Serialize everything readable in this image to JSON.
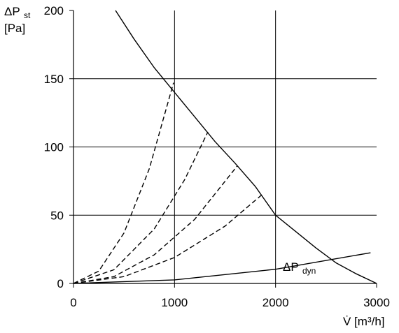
{
  "chart_data": {
    "type": "line",
    "xlabel": "V̇ [m³/h]",
    "ylabel": {
      "text": "ΔP",
      "sub": "st",
      "unit": "[Pa]"
    },
    "annotation": {
      "text": "ΔP",
      "sub": "dyn"
    },
    "xlim": [
      0,
      3000
    ],
    "xticks": [
      0,
      1000,
      2000,
      3000
    ],
    "ylim": [
      0,
      200
    ],
    "yticks": [
      0,
      50,
      100,
      150,
      200
    ],
    "grid": true,
    "series": [
      {
        "color": "#000000",
        "dashed": false,
        "x": [
          416,
          600,
          800,
          1000,
          1200,
          1400,
          1600,
          1800,
          2000,
          2200,
          2400,
          2600,
          2800,
          3000
        ],
        "values": [
          200,
          179,
          158,
          140,
          122,
          104,
          88,
          71,
          50,
          38,
          26,
          15,
          7,
          0
        ]
      },
      {
        "color": "#000000",
        "dashed": true,
        "x": [
          0,
          250,
          500,
          750,
          990
        ],
        "values": [
          0,
          9,
          37,
          84,
          147
        ]
      },
      {
        "color": "#000000",
        "dashed": true,
        "x": [
          0,
          400,
          800,
          1100,
          1330
        ],
        "values": [
          0,
          10,
          40,
          76,
          111
        ]
      },
      {
        "color": "#000000",
        "dashed": true,
        "x": [
          0,
          400,
          800,
          1200,
          1620
        ],
        "values": [
          0,
          5,
          21,
          47,
          86
        ]
      },
      {
        "color": "#000000",
        "dashed": true,
        "x": [
          0,
          500,
          1000,
          1500,
          1865
        ],
        "values": [
          0,
          5,
          19,
          42,
          65
        ]
      },
      {
        "color": "#000000",
        "dashed": false,
        "x": [
          0,
          1000,
          2000,
          2940
        ],
        "values": [
          0,
          2.6,
          10.4,
          22.5
        ]
      }
    ]
  }
}
